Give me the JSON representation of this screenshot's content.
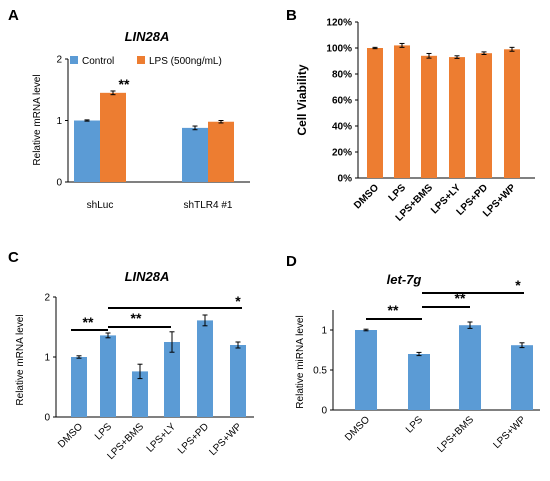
{
  "chart_data": [
    {
      "panel": "A",
      "type": "bar",
      "title": "LIN28A",
      "ylabel": "Relative mRNA level",
      "ylim": [
        0,
        2
      ],
      "yticks": [
        "0",
        "1",
        "2"
      ],
      "categories": [
        "shLuc",
        "shTLR4 #1"
      ],
      "series": [
        {
          "name": "Control",
          "values": [
            1.0,
            0.88
          ],
          "errors": [
            0.01,
            0.03
          ],
          "color": "#5b9bd5"
        },
        {
          "name": "LPS (500ng/mL)",
          "values": [
            1.45,
            0.98
          ],
          "errors": [
            0.03,
            0.02
          ],
          "color": "#ed7d31"
        }
      ],
      "annotations": [
        "**"
      ],
      "legend": "top"
    },
    {
      "panel": "B",
      "type": "bar",
      "title": "",
      "ylabel": "Cell Viability",
      "ylim": [
        0,
        120
      ],
      "yticks": [
        "0%",
        "20%",
        "40%",
        "60%",
        "80%",
        "100%",
        "120%"
      ],
      "categories": [
        "DMSO",
        "LPS",
        "LPS+BMS",
        "LPS+LY",
        "LPS+PD",
        "LPS+WP"
      ],
      "series": [
        {
          "values": [
            100,
            102,
            94,
            93,
            96,
            99
          ],
          "errors": [
            0.5,
            1.5,
            1.8,
            1.0,
            1.0,
            1.5
          ],
          "color": "#ed7d31"
        }
      ]
    },
    {
      "panel": "C",
      "type": "bar",
      "title": "LIN28A",
      "ylabel": "Relative mRNA level",
      "ylim": [
        0,
        2
      ],
      "yticks": [
        "0",
        "1",
        "2"
      ],
      "categories": [
        "DMSO",
        "LPS",
        "LPS+BMS",
        "LPS+LY",
        "LPS+PD",
        "LPS+WP"
      ],
      "series": [
        {
          "values": [
            1.0,
            1.36,
            0.76,
            1.25,
            1.61,
            1.2
          ],
          "errors": [
            0.02,
            0.04,
            0.12,
            0.17,
            0.09,
            0.05
          ],
          "color": "#5b9bd5"
        }
      ],
      "annotations": [
        "**",
        "**",
        "*"
      ]
    },
    {
      "panel": "D",
      "type": "bar",
      "title": "let-7g",
      "ylabel": "Relative miRNA level",
      "ylim": [
        0,
        1.25
      ],
      "yticks": [
        "0",
        "0.5",
        "1"
      ],
      "categories": [
        "DMSO",
        "LPS",
        "LPS+BMS",
        "LPS+WP"
      ],
      "series": [
        {
          "values": [
            1.0,
            0.7,
            1.06,
            0.81
          ],
          "errors": [
            0.01,
            0.02,
            0.04,
            0.03
          ],
          "color": "#5b9bd5"
        }
      ],
      "annotations": [
        "**",
        "**",
        "*"
      ]
    }
  ]
}
